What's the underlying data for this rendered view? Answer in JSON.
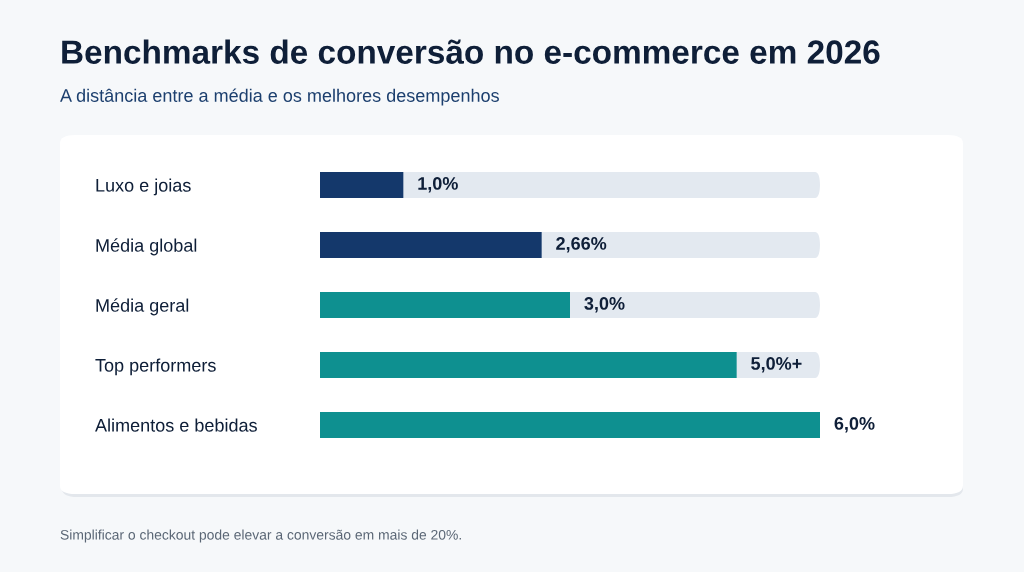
{
  "chart_data": {
    "type": "bar",
    "orientation": "horizontal",
    "title": "Benchmarks de conversão no e-commerce em 2026",
    "subtitle": "A distância entre a média e os melhores desempenhos",
    "categories": [
      "Luxo e joias",
      "Média global",
      "Média geral",
      "Top performers",
      "Alimentos e bebidas"
    ],
    "values": [
      1.0,
      2.66,
      3.0,
      5.0,
      6.0
    ],
    "colors": [
      "#14386b",
      "#14386b",
      "#0e9090",
      "#0e9090",
      "#0e9090"
    ],
    "value_labels": [
      "1,0%",
      "2,66%",
      "3,0%",
      "5,0%+",
      "6,0%"
    ],
    "xlim": [
      0,
      6
    ],
    "tick_labels": "y",
    "grid": false,
    "legend": false,
    "annotations": [
      "Simplificar o checkout pode elevar a conversão em mais de 20%."
    ]
  }
}
